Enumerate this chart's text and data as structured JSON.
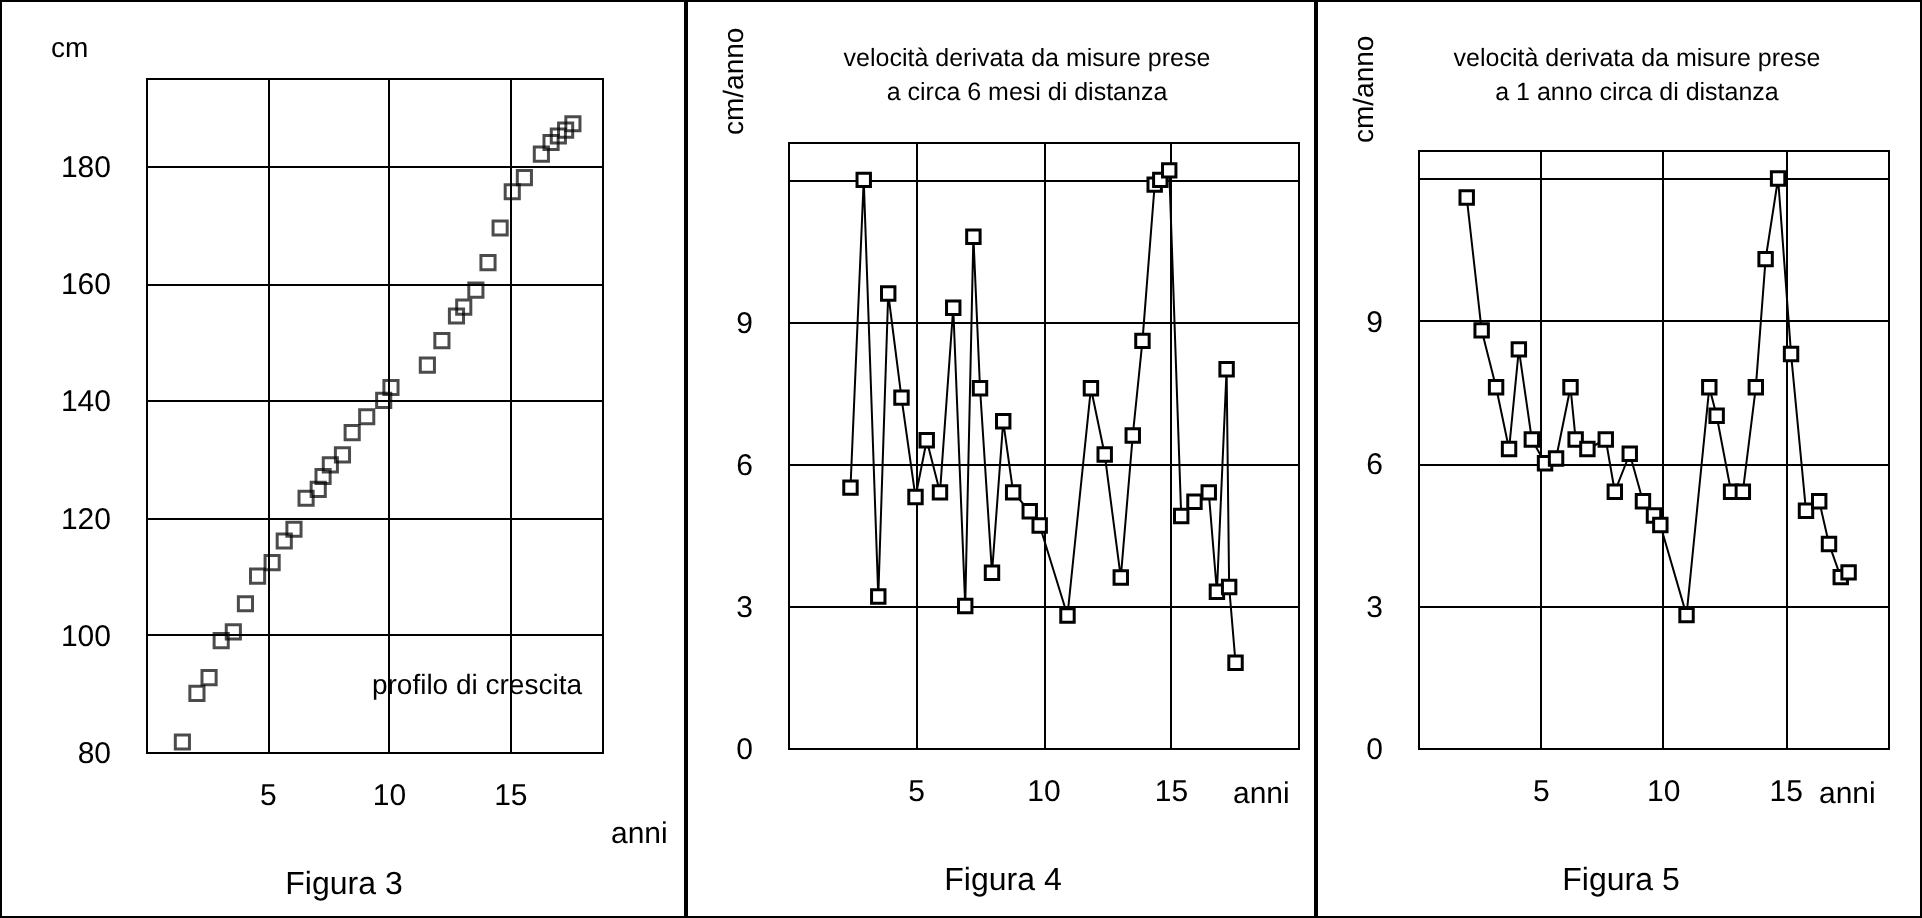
{
  "chart_data": [
    {
      "type": "scatter",
      "xlabel": "anni",
      "ylabel": "cm",
      "annotations": [
        "profilo di crescita",
        "Figura 3"
      ],
      "x": [
        1.5,
        2.1,
        2.6,
        3.1,
        3.6,
        4.1,
        4.6,
        5.2,
        5.7,
        6.1,
        6.6,
        7.1,
        7.3,
        7.6,
        8.1,
        8.5,
        9.1,
        9.8,
        10.1,
        11.6,
        12.2,
        12.8,
        13.1,
        13.6,
        14.1,
        14.6,
        15.1,
        15.6,
        16.3,
        16.7,
        17.0,
        17.3,
        17.6
      ],
      "series": [
        {
          "color": "#000000",
          "values": [
            81.7,
            90,
            92.7,
            99,
            100.5,
            105.3,
            110,
            112.3,
            116,
            118,
            123.3,
            124.8,
            127,
            129,
            130.7,
            134.5,
            137.2,
            140,
            142.2,
            146,
            150.2,
            154.4,
            155.9,
            158.8,
            163.5,
            169.4,
            175.6,
            178,
            182,
            184,
            185.1,
            186.1,
            187.2
          ]
        }
      ],
      "xlim": [
        0,
        18.8
      ],
      "ylim": [
        80,
        195
      ],
      "xticks": [
        5,
        10,
        15
      ],
      "yticks": [
        80,
        100,
        120,
        140,
        160,
        180
      ],
      "grid": true,
      "marker": "square"
    },
    {
      "type": "line",
      "title": "velocità derivata da misure prese a circa 6 mesi di distanza",
      "xlabel": "anni",
      "ylabel": "cm/anno",
      "annotations": [
        "Figura 4"
      ],
      "x": [
        2.45,
        2.97,
        3.54,
        3.93,
        4.45,
        5.0,
        5.44,
        5.96,
        6.48,
        6.95,
        7.27,
        7.53,
        8.0,
        8.44,
        8.83,
        9.48,
        9.87,
        10.96,
        11.88,
        12.42,
        13.05,
        13.52,
        13.9,
        14.38,
        14.6,
        14.95,
        15.42,
        15.94,
        16.5,
        16.82,
        17.2,
        17.3,
        17.55
      ],
      "series": [
        {
          "color": "#000000",
          "values": [
            5.5,
            12.0,
            3.2,
            9.6,
            7.4,
            5.3,
            6.5,
            5.4,
            9.3,
            3.0,
            10.8,
            7.6,
            3.7,
            6.9,
            5.4,
            5.0,
            4.7,
            2.8,
            7.6,
            6.2,
            3.6,
            6.6,
            8.6,
            11.9,
            12.0,
            12.2,
            4.9,
            5.2,
            5.4,
            3.3,
            8.0,
            3.4,
            1.8
          ]
        }
      ],
      "xlim": [
        0,
        20
      ],
      "ylim": [
        0,
        12.8
      ],
      "xticks": [
        5,
        10,
        15
      ],
      "yticks": [
        0,
        3,
        6,
        9,
        {
          "value": 12,
          "label": null
        }
      ],
      "grid": true,
      "marker": "square",
      "line_style": "solid"
    },
    {
      "type": "line",
      "title": "velocità derivata da misure prese a 1 anno circa di distanza",
      "xlabel": "anni",
      "ylabel": "cm/anno",
      "annotations": [
        "Figura 5"
      ],
      "x": [
        1.99,
        2.6,
        3.19,
        3.72,
        4.12,
        4.65,
        5.19,
        5.64,
        6.23,
        6.44,
        6.92,
        7.67,
        8.04,
        8.65,
        9.19,
        9.64,
        9.9,
        10.97,
        11.9,
        12.2,
        12.79,
        13.27,
        13.8,
        14.2,
        14.71,
        15.24,
        15.85,
        16.39,
        16.79,
        17.27,
        17.59
      ],
      "series": [
        {
          "color": "#000000",
          "values": [
            11.6,
            8.8,
            7.6,
            6.3,
            8.4,
            6.5,
            6.0,
            6.1,
            7.6,
            6.5,
            6.3,
            6.5,
            5.4,
            6.2,
            5.2,
            4.9,
            4.7,
            2.8,
            7.6,
            7.0,
            5.4,
            5.4,
            7.6,
            10.3,
            12.0,
            8.3,
            5.0,
            5.2,
            4.3,
            3.6,
            3.7
          ]
        }
      ],
      "xlim": [
        0,
        19.2
      ],
      "ylim": [
        0,
        12.6
      ],
      "xticks": [
        5,
        10,
        15
      ],
      "yticks": [
        0,
        3,
        6,
        9,
        {
          "value": 12,
          "label": null
        }
      ],
      "grid": true,
      "marker": "square",
      "line_style": "solid"
    }
  ]
}
